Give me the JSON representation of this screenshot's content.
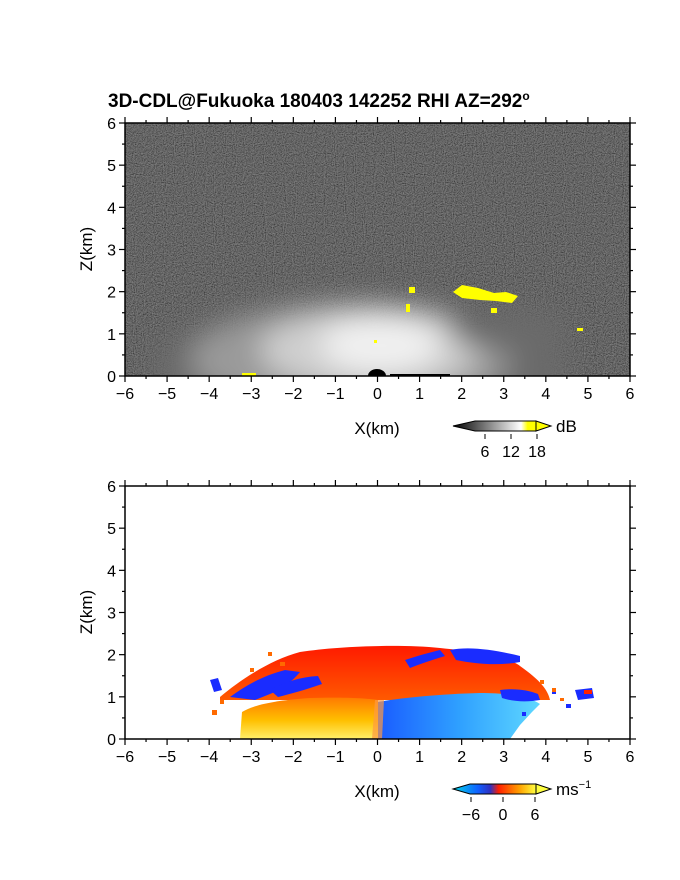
{
  "chart_data": [
    {
      "type": "heatmap",
      "title": "3D-CDL@Fukuoka 180403 142252 RHI AZ=292",
      "title_superscript": "o",
      "xlabel": "X(km)",
      "ylabel": "Z(km)",
      "xlim": [
        -6,
        6
      ],
      "ylim": [
        0,
        6
      ],
      "xticks": [
        -6,
        -5,
        -4,
        -3,
        -2,
        -1,
        0,
        1,
        2,
        3,
        4,
        5,
        6
      ],
      "yticks": [
        0,
        1,
        2,
        3,
        4,
        5,
        6
      ],
      "colorbar": {
        "unit": "dB",
        "ticks": [
          6,
          12,
          18
        ],
        "colormap": "gray-to-yellow",
        "colors": [
          "#000000",
          "#ffffff",
          "#ffff00"
        ]
      },
      "field_description": {
        "background_noise": "dark gray",
        "bright_echo_region_x": [
          -4.5,
          4.5
        ],
        "bright_echo_top_z": 2.0,
        "high_return_patches": [
          {
            "x": [
              1.8,
              3.4
            ],
            "z": [
              1.75,
              2.15
            ]
          },
          {
            "x": [
              0.7,
              0.9
            ],
            "z": [
              1.4,
              2.0
            ]
          },
          {
            "x": [
              4.9,
              5.2
            ],
            "z": [
              1.05,
              1.15
            ]
          }
        ]
      }
    },
    {
      "type": "heatmap",
      "xlabel": "X(km)",
      "ylabel": "Z(km)",
      "xlim": [
        -6,
        6
      ],
      "ylim": [
        0,
        6
      ],
      "xticks": [
        -6,
        -5,
        -4,
        -3,
        -2,
        -1,
        0,
        1,
        2,
        3,
        4,
        5,
        6
      ],
      "yticks": [
        0,
        1,
        2,
        3,
        4,
        5,
        6
      ],
      "colorbar": {
        "unit": "ms",
        "unit_superscript": "−1",
        "ticks": [
          "−6",
          "0",
          "6"
        ],
        "colormap": "blue-cyan-red-yellow",
        "colors": [
          "#1030d0",
          "#30c8ff",
          "#ff2000",
          "#ffe000"
        ]
      },
      "field_description": {
        "data_region_x": [
          -4.1,
          5.2
        ],
        "data_top_z": 2.2,
        "negative_velocity_region": {
          "x": [
            0.0,
            3.7
          ],
          "z": [
            0.0,
            1.0
          ]
        },
        "positive_velocity_region": {
          "x": [
            -3.3,
            0.0
          ],
          "z": [
            0.0,
            1.0
          ]
        },
        "upper_layer": {
          "x": [
            -2.5,
            3.2
          ],
          "z": [
            1.0,
            2.1
          ],
          "sign": "positive"
        },
        "blue_speckle_edges": {
          "x": [
            -3.5,
            3.5
          ],
          "z": [
            1.0,
            2.2
          ]
        }
      }
    }
  ]
}
